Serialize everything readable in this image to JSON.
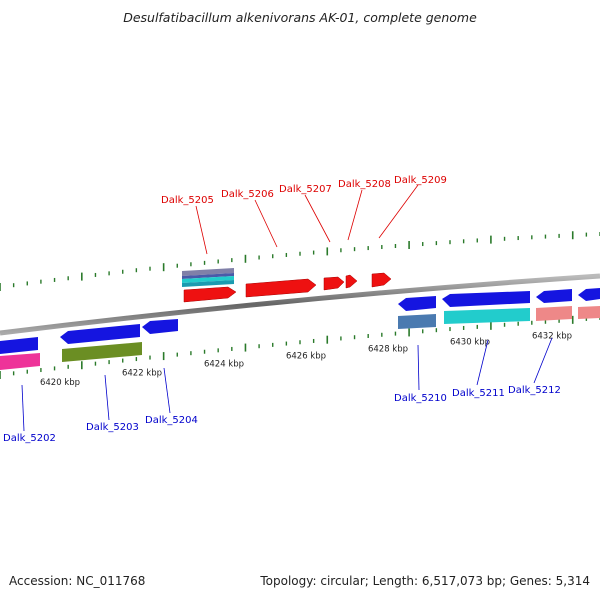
{
  "title": "Desulfatibacillum alkenivorans AK-01, complete genome",
  "accession": "Accession: NC_011768",
  "summary": "Topology: circular; Length: 6,517,073 bp; Genes: 5,314",
  "colors": {
    "backbone": "#888888",
    "tick": "#2a7a2a",
    "top_label": "#dd0000",
    "bottom_label": "#0000cc",
    "gene_red": "#ee1111",
    "gene_blue": "#1515e0",
    "gene_cyan": "#22cccc",
    "gene_pink": "#ee3399",
    "gene_olive": "#6b8e23",
    "gene_salmon": "#ee8888",
    "gene_steel": "#4a7ab0",
    "gene_slate": "#8080a8"
  },
  "tick_labels": [
    {
      "text": "6420 kbp",
      "kbp": 6420
    },
    {
      "text": "6422 kbp",
      "kbp": 6422
    },
    {
      "text": "6424 kbp",
      "kbp": 6424
    },
    {
      "text": "6426 kbp",
      "kbp": 6426
    },
    {
      "text": "6428 kbp",
      "kbp": 6428
    },
    {
      "text": "6430 kbp",
      "kbp": 6430
    },
    {
      "text": "6432 kbp",
      "kbp": 6432
    }
  ],
  "genes_top": [
    {
      "label": "Dalk_5205",
      "strand": "+",
      "color": "red"
    },
    {
      "label": "Dalk_5206",
      "strand": "+",
      "color": "red"
    },
    {
      "label": "Dalk_5207",
      "strand": "+",
      "color": "red"
    },
    {
      "label": "Dalk_5208",
      "strand": "+",
      "color": "red"
    },
    {
      "label": "Dalk_5209",
      "strand": "+",
      "color": "red"
    }
  ],
  "genes_bottom": [
    {
      "label": "Dalk_5202",
      "strand": "-",
      "color": "blue"
    },
    {
      "label": "Dalk_5203",
      "strand": "-",
      "color": "blue"
    },
    {
      "label": "Dalk_5204",
      "strand": "-",
      "color": "blue"
    },
    {
      "label": "Dalk_5210",
      "strand": "-",
      "color": "blue"
    },
    {
      "label": "Dalk_5211",
      "strand": "-",
      "color": "blue"
    },
    {
      "label": "Dalk_5212",
      "strand": "-",
      "color": "blue"
    }
  ]
}
